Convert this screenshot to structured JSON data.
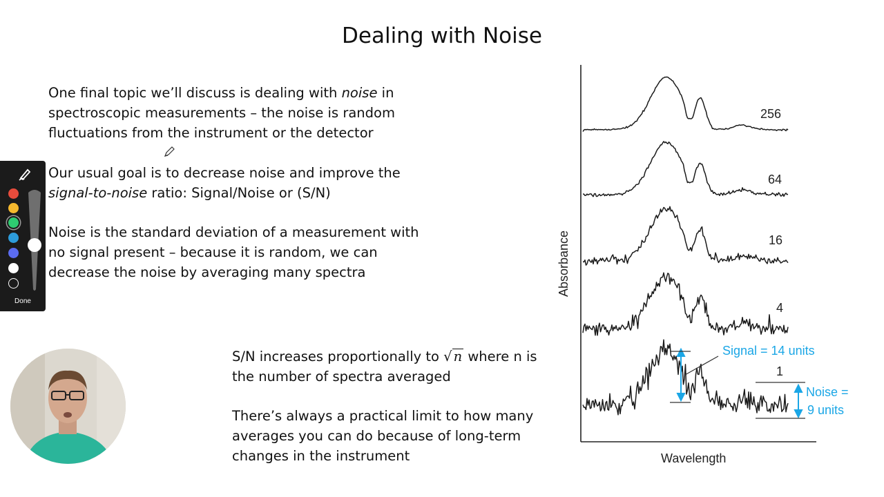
{
  "slide": {
    "title": "Dealing with Noise",
    "p1": {
      "l1a": "One final topic we’ll discuss is dealing with ",
      "l1em": "noise",
      "l1b": " in",
      "l2": "spectroscopic measurements – the noise is random",
      "l3": "fluctuations from the instrument or the detector"
    },
    "p2": {
      "l1": "Our usual goal is to decrease noise and improve the",
      "l2em": "signal-to-noise",
      "l2b": " ratio:  Signal/Noise or (S/N)"
    },
    "p3": {
      "l1": "Noise is the standard deviation of a measurement with",
      "l2": "no signal present – because it is random, we can",
      "l3": "decrease the noise by averaging many spectra"
    },
    "p4": {
      "l1a": "S/N increases proportionally to ",
      "sqrt_var": "n",
      "l1b": " where n is",
      "l2": "the number of spectra averaged"
    },
    "p5": {
      "l1": "There’s always a practical limit to how many",
      "l2": "averages you can do because of long-term",
      "l3": "changes in the instrument"
    }
  },
  "pen_toolbar": {
    "done_label": "Done",
    "colors": [
      "#e74c3c",
      "#f5b92e",
      "#2ecc71",
      "#2d9cdb",
      "#5b6cf0",
      "#ffffff",
      "transparent"
    ],
    "selected_index": 2,
    "pen_size_fraction": 0.3
  },
  "figure": {
    "ylabel": "Absorbance",
    "xlabel": "Wavelength",
    "trace_labels": [
      "256",
      "64",
      "16",
      "4",
      "1"
    ],
    "signal_label": "Signal = 14 units",
    "noise_label_1": "Noise =",
    "noise_label_2": "9 units",
    "annotation_color": "#1aa6e6"
  }
}
